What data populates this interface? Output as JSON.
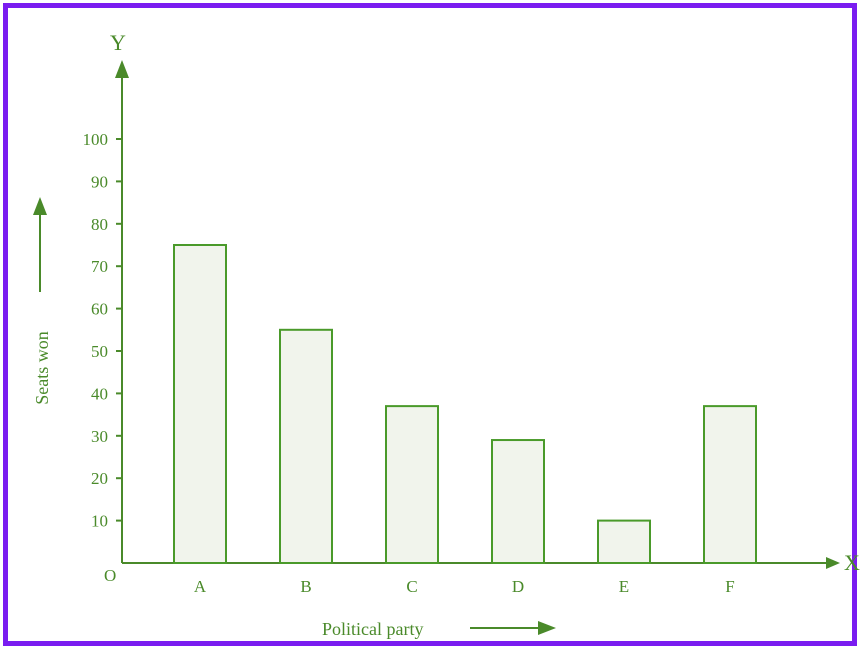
{
  "chart_data": {
    "type": "bar",
    "categories": [
      "A",
      "B",
      "C",
      "D",
      "E",
      "F"
    ],
    "values": [
      75,
      55,
      37,
      29,
      10,
      37
    ],
    "xlabel": "Political party",
    "ylabel": "Seats won",
    "ylim": [
      0,
      100
    ],
    "yticks": [
      10,
      20,
      30,
      40,
      50,
      60,
      70,
      80,
      90,
      100
    ],
    "origin_label": "O",
    "x_axis_letter": "X",
    "y_axis_letter": "Y",
    "grid": false,
    "colors": {
      "axis": "#4a8a2a",
      "bar_fill": "#f1f4ec",
      "bar_stroke": "#4a9a2a",
      "frame": "#7a1cf0"
    }
  }
}
